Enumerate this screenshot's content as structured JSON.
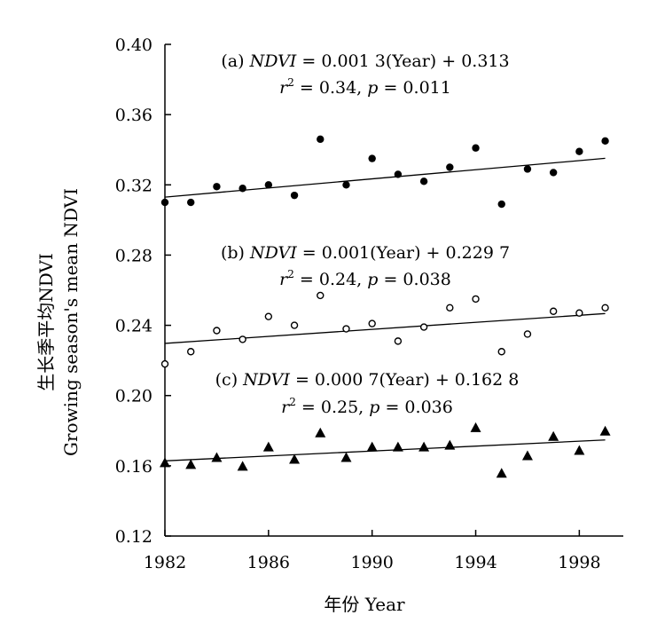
{
  "chart_data": {
    "type": "scatter",
    "xlabel": "年份 Year",
    "ylabel_cn": "生长季平均NDVI",
    "ylabel_en": "Growing season's mean NDVI",
    "xlim": [
      1982,
      2001
    ],
    "ylim": [
      0.12,
      0.4
    ],
    "xticks": [
      1982,
      1986,
      1990,
      1994,
      1998
    ],
    "xtick_labels": [
      "1982",
      "1986",
      "1990",
      "1994",
      "1998"
    ],
    "yticks": [
      0.12,
      0.16,
      0.2,
      0.24,
      0.28,
      0.32,
      0.36,
      0.4
    ],
    "ytick_labels": [
      "0.12",
      "0.16",
      "0.20",
      "0.24",
      "0.28",
      "0.32",
      "0.36",
      "0.40"
    ],
    "grid": false,
    "x": [
      1982,
      1983,
      1984,
      1985,
      1986,
      1987,
      1988,
      1989,
      1990,
      1991,
      1992,
      1993,
      1994,
      1995,
      1996,
      1997,
      1998,
      1999
    ],
    "series": [
      {
        "marker": "filled-circle",
        "values": [
          0.31,
          0.31,
          0.319,
          0.318,
          0.32,
          0.314,
          0.346,
          0.32,
          0.335,
          0.326,
          0.322,
          0.33,
          0.341,
          0.309,
          0.329,
          0.327,
          0.339,
          0.345
        ],
        "fit": {
          "slope": 0.0013,
          "intercept": 0.313
        },
        "label_line1": {
          "prefix": "(a) ",
          "var": "NDVI",
          "rest": " = 0.001 3(Year) + 0.313"
        },
        "label_line2": {
          "r": "r",
          "sup": "2",
          "mid": " = 0.34,  ",
          "p": "p",
          "rest": " = 0.011"
        }
      },
      {
        "marker": "open-circle",
        "values": [
          0.218,
          0.225,
          0.237,
          0.232,
          0.245,
          0.24,
          0.257,
          0.238,
          0.241,
          0.231,
          0.239,
          0.25,
          0.255,
          0.225,
          0.235,
          0.248,
          0.247,
          0.25
        ],
        "fit": {
          "slope": 0.001,
          "intercept": 0.2297
        },
        "label_line1": {
          "prefix": "(b) ",
          "var": "NDVI",
          "rest": " = 0.001(Year) + 0.229 7"
        },
        "label_line2": {
          "r": "r",
          "sup": "2",
          "mid": " = 0.24,  ",
          "p": "p",
          "rest": " = 0.038"
        }
      },
      {
        "marker": "filled-triangle",
        "values": [
          0.162,
          0.161,
          0.165,
          0.16,
          0.171,
          0.164,
          0.179,
          0.165,
          0.171,
          0.171,
          0.171,
          0.172,
          0.182,
          0.156,
          0.166,
          0.177,
          0.169,
          0.18
        ],
        "fit": {
          "slope": 0.0007,
          "intercept": 0.1628
        },
        "label_line1": {
          "prefix": "(c) ",
          "var": "NDVI",
          "rest": " = 0.000 7(Year) + 0.162 8"
        },
        "label_line2": {
          "r": "r",
          "sup": "2",
          "mid": " = 0.25,  ",
          "p": "p",
          "rest": " = 0.036"
        }
      }
    ]
  }
}
